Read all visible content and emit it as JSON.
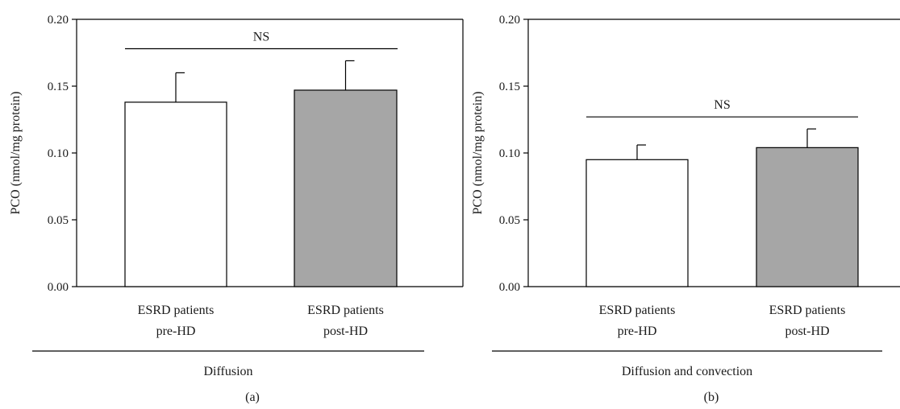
{
  "chart_data": [
    {
      "type": "bar",
      "panel_label": "(a)",
      "ylabel": "PCO (nmol/mg protein)",
      "ylim": [
        0,
        0.2
      ],
      "yticks": [
        "0.00",
        "0.05",
        "0.10",
        "0.15",
        "0.20"
      ],
      "categories": [
        {
          "line1": "ESRD patients",
          "line2": "pre-HD"
        },
        {
          "line1": "ESRD patients",
          "line2": "post-HD"
        }
      ],
      "values": [
        0.138,
        0.147
      ],
      "errors": [
        0.022,
        0.022
      ],
      "bar_colors": [
        "#ffffff",
        "#a6a6a6"
      ],
      "group_label": "Diffusion",
      "significance": {
        "label": "NS",
        "level": 0.178
      }
    },
    {
      "type": "bar",
      "panel_label": "(b)",
      "ylabel": "PCO (nmol/mg protein)",
      "ylim": [
        0,
        0.2
      ],
      "yticks": [
        "0.00",
        "0.05",
        "0.10",
        "0.15",
        "0.20"
      ],
      "categories": [
        {
          "line1": "ESRD patients",
          "line2": "pre-HD"
        },
        {
          "line1": "ESRD patients",
          "line2": "post-HD"
        }
      ],
      "values": [
        0.095,
        0.104
      ],
      "errors": [
        0.011,
        0.014
      ],
      "bar_colors": [
        "#ffffff",
        "#a6a6a6"
      ],
      "group_label": "Diffusion and convection",
      "significance": {
        "label": "NS",
        "level": 0.127
      }
    }
  ]
}
